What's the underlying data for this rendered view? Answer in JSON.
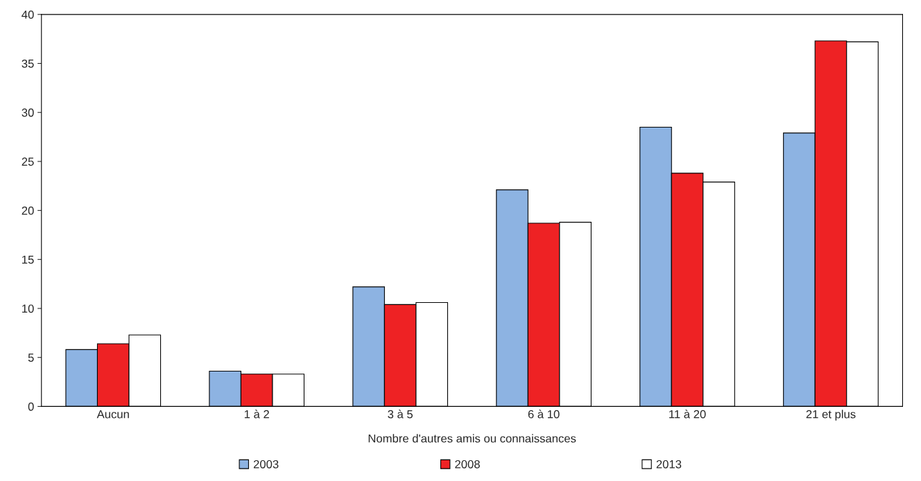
{
  "chart_data": {
    "type": "bar",
    "xlabel": "Nombre d'autres amis ou connaissances",
    "categories": [
      "Aucun",
      "1 à 2",
      "3 à 5",
      "6 à 10",
      "11 à 20",
      "21 et plus"
    ],
    "series": [
      {
        "name": "2003",
        "color": "#8db3e2",
        "values": [
          5.8,
          3.6,
          12.2,
          22.1,
          28.5,
          27.9
        ]
      },
      {
        "name": "2008",
        "color": "#ee2224",
        "values": [
          6.4,
          3.3,
          10.4,
          18.7,
          23.8,
          37.3
        ]
      },
      {
        "name": "2013",
        "color": "#ffffff",
        "values": [
          7.3,
          3.3,
          10.6,
          18.8,
          22.9,
          37.2
        ]
      }
    ],
    "ylim": [
      0,
      40
    ],
    "yticks": [
      0,
      5,
      10,
      15,
      20,
      25,
      30,
      35,
      40
    ],
    "grid": false,
    "legend": "bottom"
  }
}
